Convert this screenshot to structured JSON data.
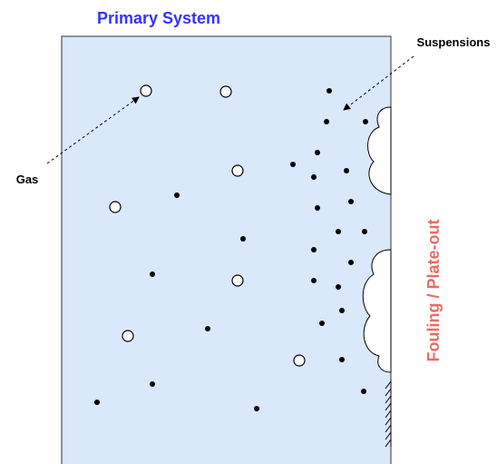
{
  "title": "Primary System",
  "labels": {
    "gas": "Gas",
    "suspensions": "Suspensions",
    "fouling": "Fouling / Plate-out"
  }
}
